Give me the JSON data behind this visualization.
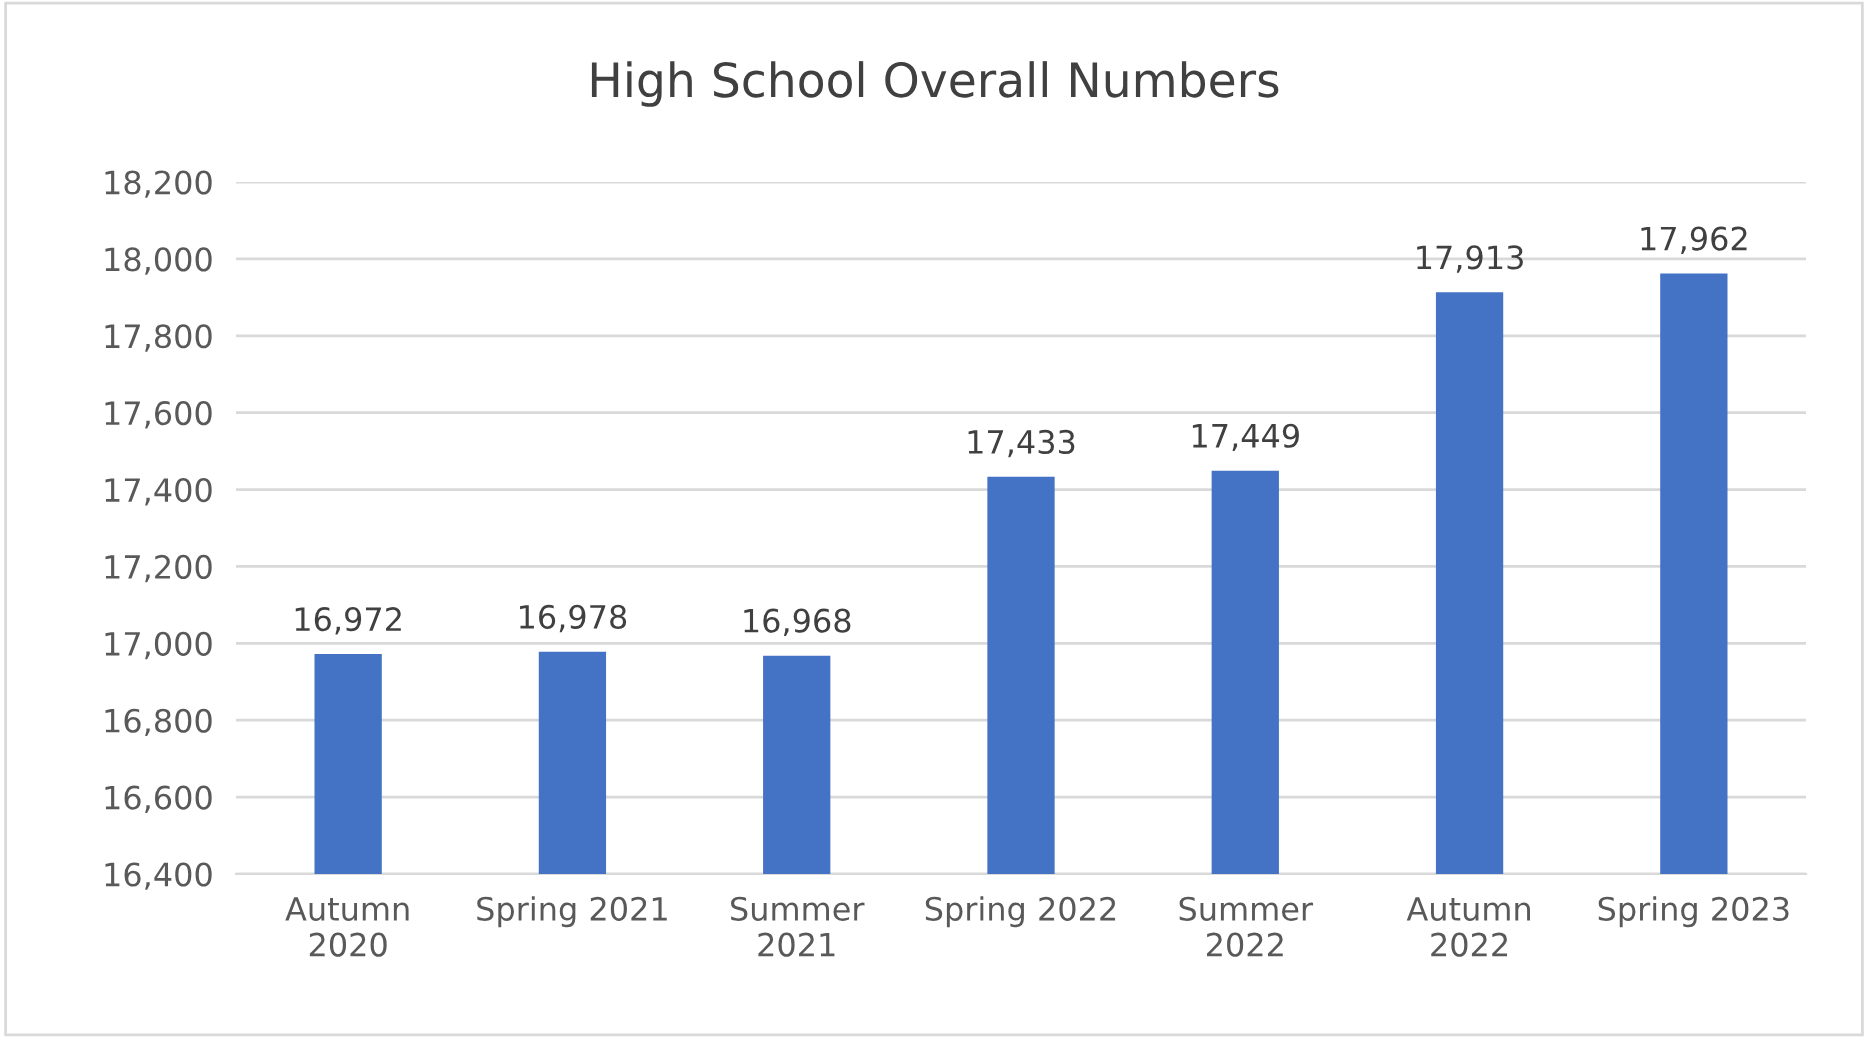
{
  "chart_data": {
    "type": "bar",
    "title": "High School Overall Numbers",
    "categories": [
      "Autumn\n2020",
      "Spring 2021",
      "Summer\n2021",
      "Spring 2022",
      "Summer\n2022",
      "Autumn\n2022",
      "Spring 2023"
    ],
    "values": [
      16972,
      16978,
      16968,
      17433,
      17449,
      17913,
      17962
    ],
    "value_labels": [
      "16,972",
      "16,978",
      "16,968",
      "17,433",
      "17,449",
      "17,913",
      "17,962"
    ],
    "color": "#4472c4",
    "ylim": [
      16400,
      18200
    ],
    "yticks": [
      {
        "value": 16400,
        "label": "16,400"
      },
      {
        "value": 16600,
        "label": "16,600"
      },
      {
        "value": 16800,
        "label": "16,800"
      },
      {
        "value": 17000,
        "label": "17,000"
      },
      {
        "value": 17200,
        "label": "17,200"
      },
      {
        "value": 17400,
        "label": "17,400"
      },
      {
        "value": 17600,
        "label": "17,600"
      },
      {
        "value": 17800,
        "label": "17,800"
      },
      {
        "value": 18000,
        "label": "18,000"
      },
      {
        "value": 18200,
        "label": "18,200"
      }
    ],
    "grid": "y"
  }
}
